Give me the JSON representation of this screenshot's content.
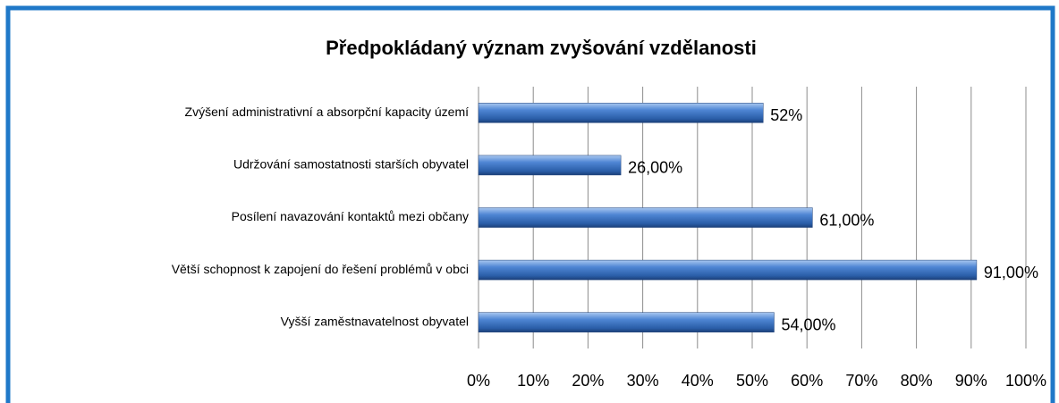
{
  "chart_data": {
    "type": "hbar",
    "title": "Předpokládaný význam zvyšování vzdělanosti",
    "categories": [
      "Zvýšení administrativní a absorpční kapacity území",
      "Udržování samostatnosti starších obyvatel",
      "Posílení navazování kontaktů mezi občany",
      "Větší schopnost k zapojení do řešení problémů v obci",
      "Vyšší zaměstnavatelnost obyvatel"
    ],
    "values": [
      52,
      26,
      61,
      91,
      54
    ],
    "value_labels": [
      "52%",
      "26,00%",
      "61,00%",
      "91,00%",
      "54,00%"
    ],
    "color": "#3a70c0",
    "xlim": [
      0,
      100
    ],
    "xticks": [
      {
        "value": 0,
        "label": "0%"
      },
      {
        "value": 10,
        "label": "10%"
      },
      {
        "value": 20,
        "label": "20%"
      },
      {
        "value": 30,
        "label": "30%"
      },
      {
        "value": 40,
        "label": "40%"
      },
      {
        "value": 50,
        "label": "50%"
      },
      {
        "value": 60,
        "label": "60%"
      },
      {
        "value": 70,
        "label": "70%"
      },
      {
        "value": 80,
        "label": "80%"
      },
      {
        "value": 90,
        "label": "90%"
      },
      {
        "value": 100,
        "label": "100%"
      }
    ],
    "grid": true
  }
}
